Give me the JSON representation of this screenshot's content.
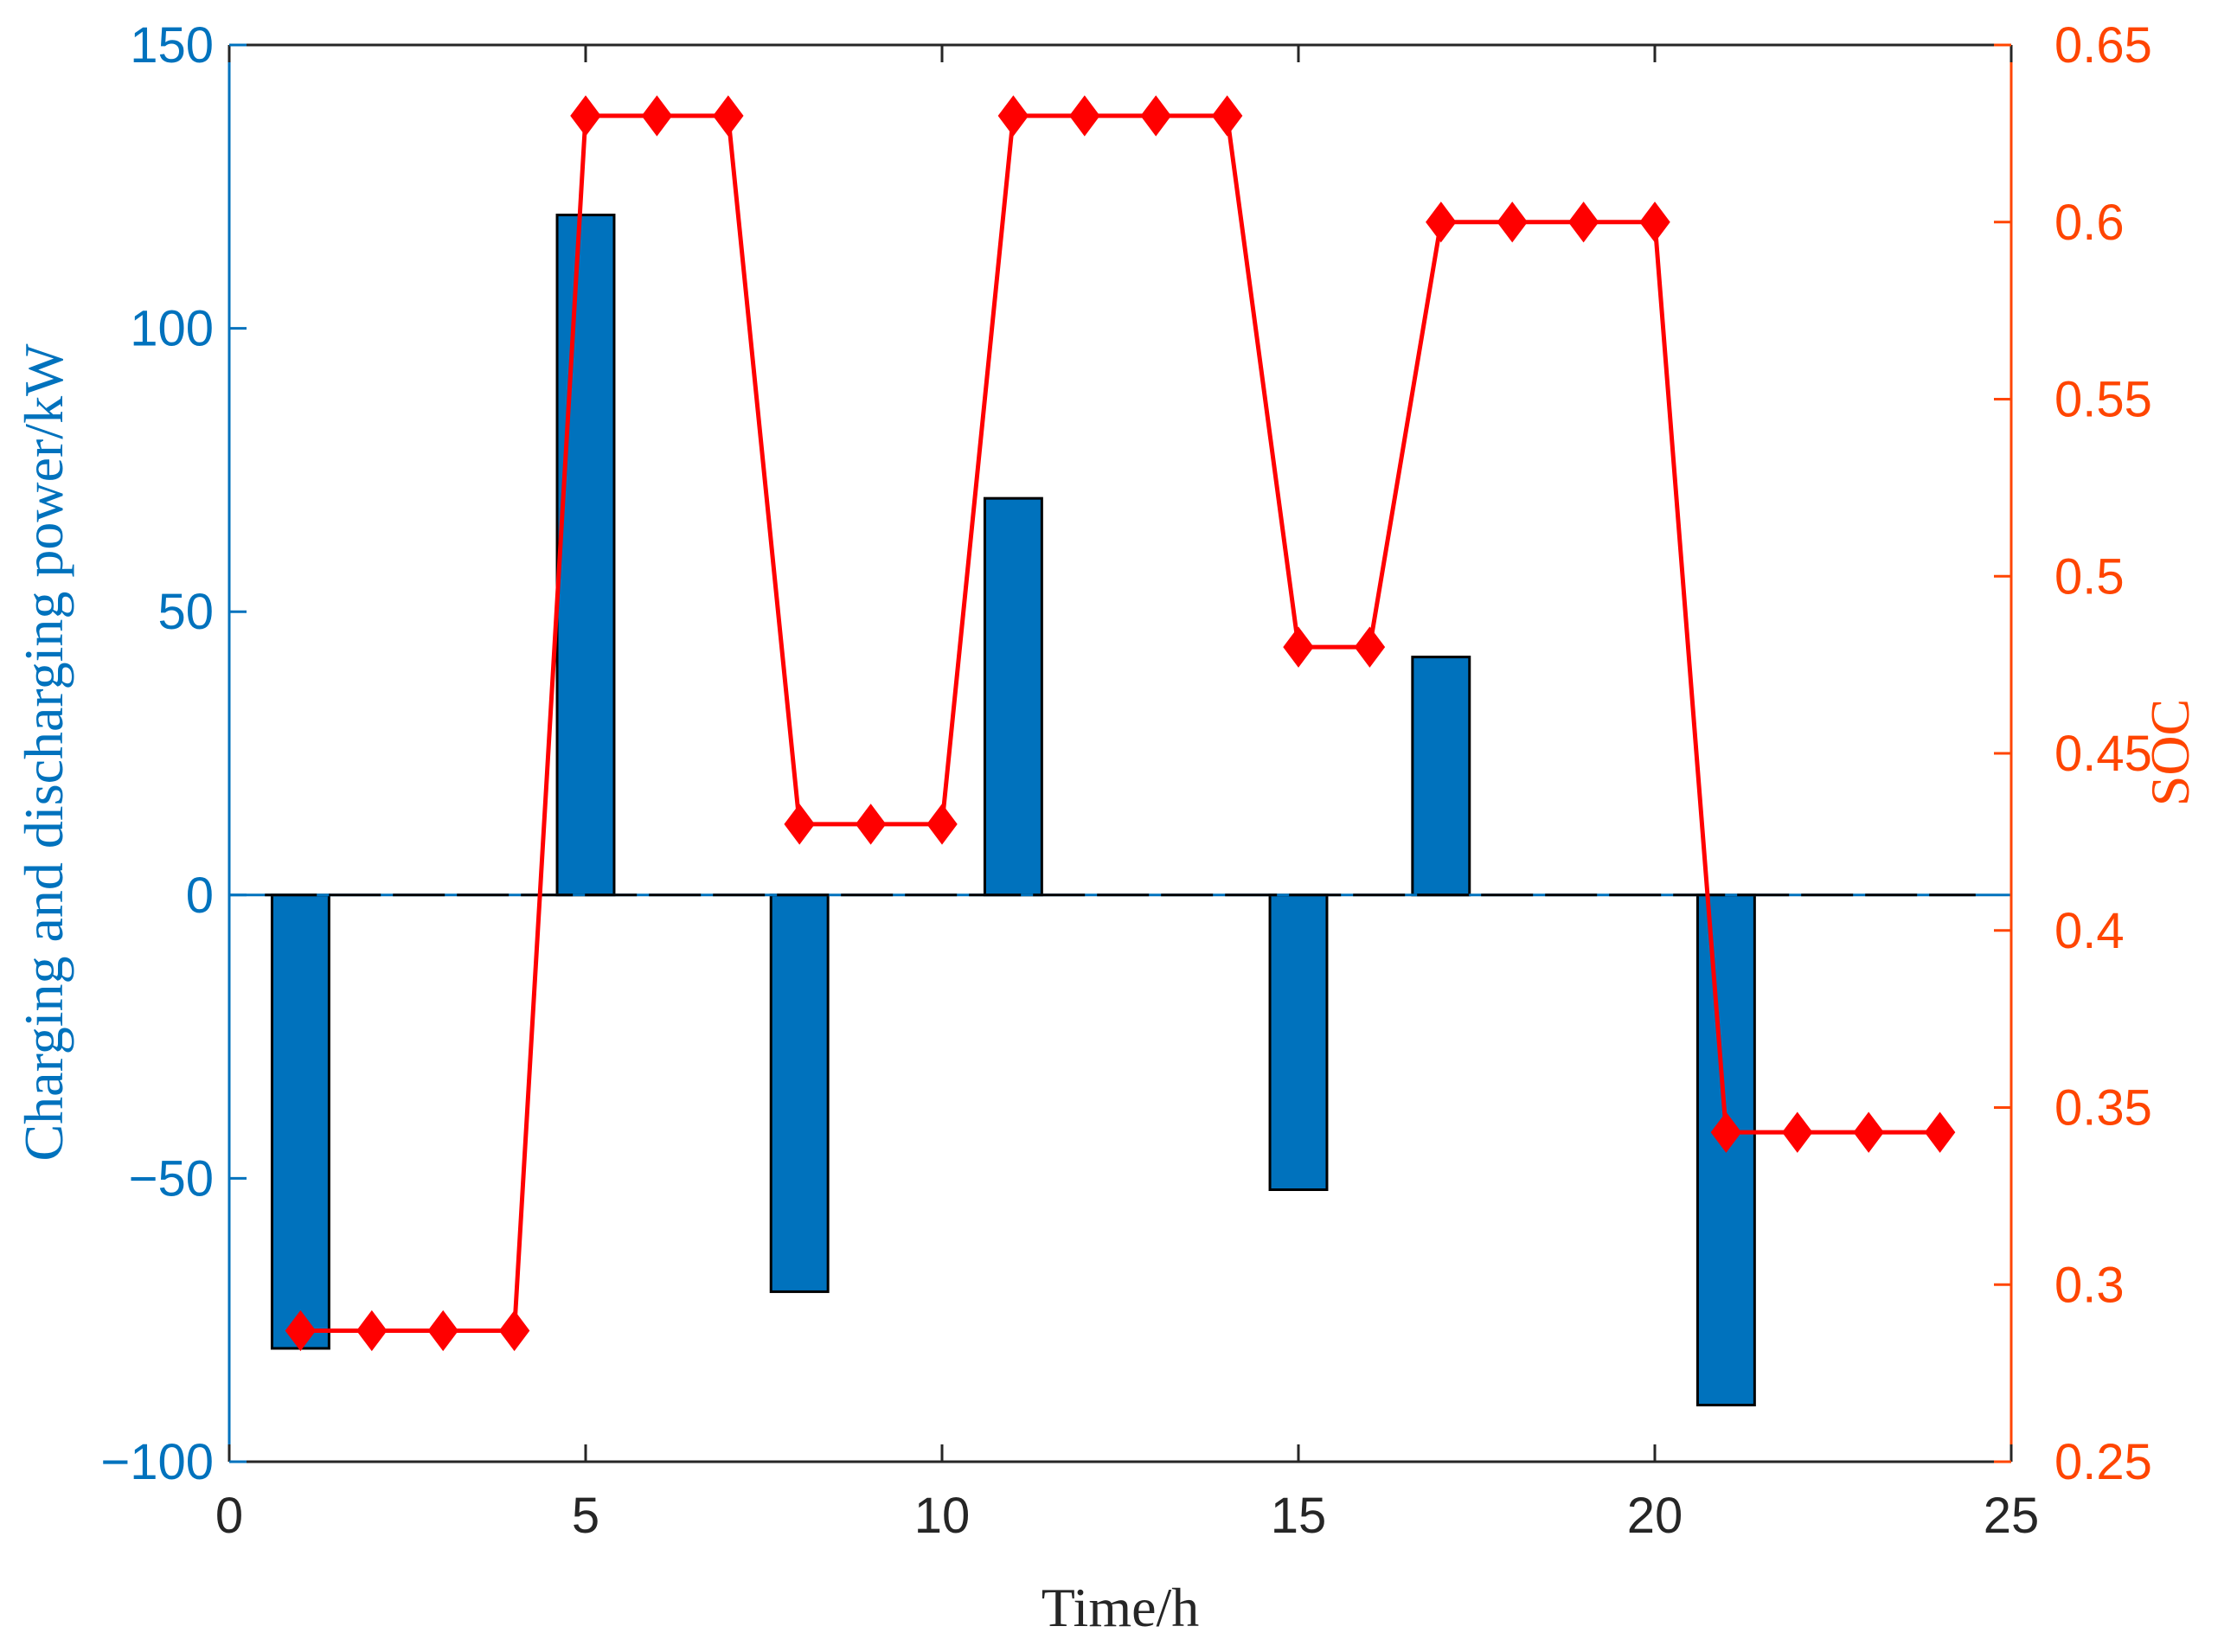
{
  "colors": {
    "bar_fill": "#0072BD",
    "bar_edge": "#000000",
    "left_axis": "#0072BD",
    "right_axis": "#FF4500",
    "soc_line": "#FF0000",
    "bottom_axis": "#262626"
  },
  "chart_data": {
    "type": "bar+line",
    "xlabel": "Time/h",
    "ylabel_left": "Charging and discharging power/kW",
    "ylabel_right": "SOC",
    "xlim": [
      0,
      25
    ],
    "xticks": [
      0,
      5,
      10,
      15,
      20,
      25
    ],
    "ylim_left": [
      -100,
      150
    ],
    "yticks_left": [
      -100,
      -50,
      0,
      50,
      100,
      150
    ],
    "yticklabels_left": [
      "−100",
      "−50",
      "0",
      "50",
      "100",
      "150"
    ],
    "ylim_right": [
      0.25,
      0.65
    ],
    "yticks_right": [
      0.25,
      0.3,
      0.35,
      0.4,
      0.45,
      0.5,
      0.55,
      0.6,
      0.65
    ],
    "yticklabels_right": [
      "0.25",
      "0.3",
      "0.35",
      "0.4",
      "0.45",
      "0.5",
      "0.55",
      "0.6",
      "0.65"
    ],
    "grid": false,
    "legend": "none",
    "zero_line": true,
    "series": [
      {
        "axis": "left",
        "type": "bar",
        "x": [
          1,
          5,
          8,
          11,
          15,
          17,
          21
        ],
        "values": [
          -80,
          120,
          -70,
          70,
          -52,
          42,
          -90
        ]
      },
      {
        "axis": "right",
        "type": "line",
        "marker": "diamond",
        "x": [
          1,
          2,
          3,
          4,
          5,
          6,
          7,
          8,
          9,
          10,
          11,
          12,
          13,
          14,
          15,
          16,
          17,
          18,
          19,
          20,
          21,
          22,
          23,
          24
        ],
        "values": [
          0.287,
          0.287,
          0.287,
          0.287,
          0.63,
          0.63,
          0.63,
          0.43,
          0.43,
          0.43,
          0.63,
          0.63,
          0.63,
          0.63,
          0.48,
          0.48,
          0.6,
          0.6,
          0.6,
          0.6,
          0.343,
          0.343,
          0.343,
          0.343
        ]
      }
    ]
  }
}
